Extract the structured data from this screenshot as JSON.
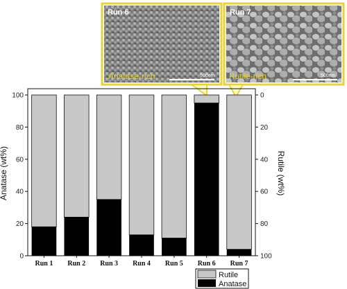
{
  "chart_data": {
    "type": "bar",
    "stacked": true,
    "categories": [
      "Run 1",
      "Run 2",
      "Run 3",
      "Run 4",
      "Run 5",
      "Run 6",
      "Run 7"
    ],
    "series": [
      {
        "name": "Anatase",
        "values": [
          18,
          24,
          35,
          13,
          11,
          95,
          4
        ],
        "color": "#000000"
      },
      {
        "name": "Rutile",
        "values": [
          82,
          76,
          65,
          87,
          89,
          5,
          96
        ],
        "color": "#c8c8c8"
      }
    ],
    "ylabel": "Anatase (wt%)",
    "ylabel_right": "Rutile (wt%)",
    "ylim": [
      0,
      100
    ],
    "ylim_right": [
      100,
      0
    ],
    "yticks": [
      "0",
      "20",
      "40",
      "60",
      "80",
      "100"
    ],
    "yticks_right": [
      "0",
      "20",
      "40",
      "60",
      "80",
      "100"
    ],
    "grid": false,
    "legend_position": "bottom-right"
  },
  "micrographs": [
    {
      "run": "Run 6",
      "label": "Anatase-rich",
      "scale": "500nm",
      "tone": "#8a8a8a"
    },
    {
      "run": "Run 7",
      "label": "Rutile-rich",
      "scale": "500nm",
      "tone": "#9a9a9a"
    }
  ],
  "callout_color": "#e8d23a"
}
